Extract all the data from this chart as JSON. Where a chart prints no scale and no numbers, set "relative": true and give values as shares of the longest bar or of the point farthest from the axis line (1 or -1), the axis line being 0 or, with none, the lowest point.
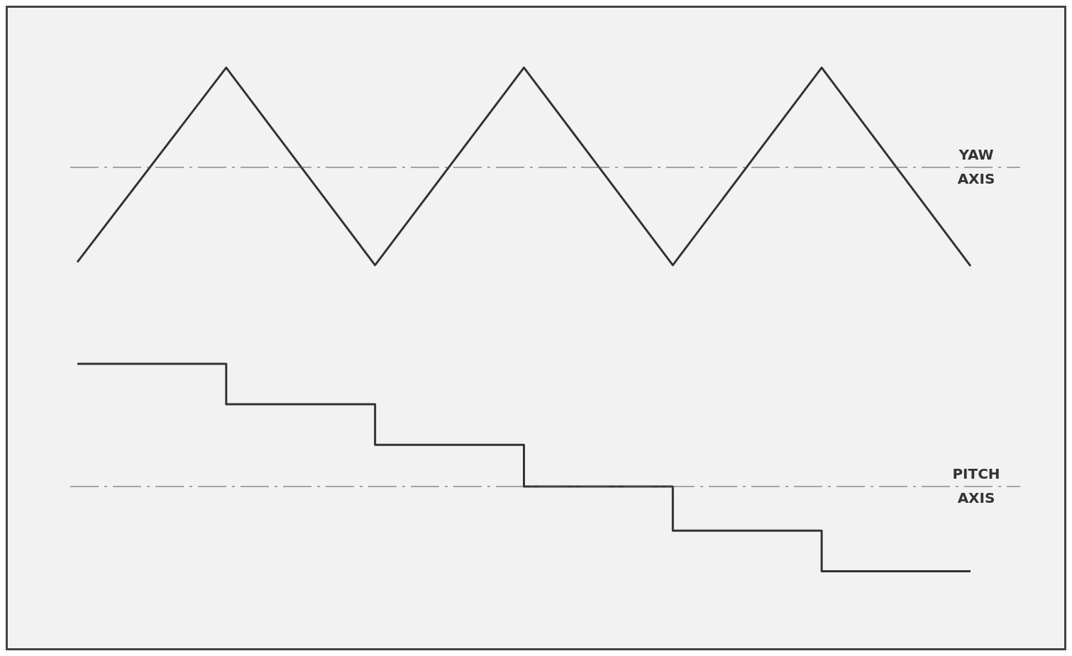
{
  "chart_data": [
    {
      "type": "line",
      "relative": true,
      "categories": [
        null,
        null,
        null,
        null,
        null,
        null,
        null
      ],
      "series": [
        {
          "color": "#333333",
          "values": [
            -0.95,
            1,
            -0.98,
            1,
            -0.98,
            1,
            -0.99
          ]
        }
      ],
      "ref_lines": [
        {
          "axis": "y",
          "value": 0,
          "label": "YAW AXIS",
          "line_style": "dashed",
          "color": "#555555"
        }
      ]
    },
    {
      "type": "step",
      "relative": true,
      "categories": [
        null,
        null,
        null,
        null,
        null,
        null,
        null
      ],
      "series": [
        {
          "color": "#333333",
          "values": [
            1,
            0.67,
            0.34,
            0,
            -0.36,
            -0.69,
            -0.69
          ]
        }
      ],
      "ref_lines": [
        {
          "axis": "y",
          "value": 0,
          "label": "PITCH AXIS",
          "line_style": "dashed",
          "color": "#555555"
        }
      ]
    }
  ]
}
